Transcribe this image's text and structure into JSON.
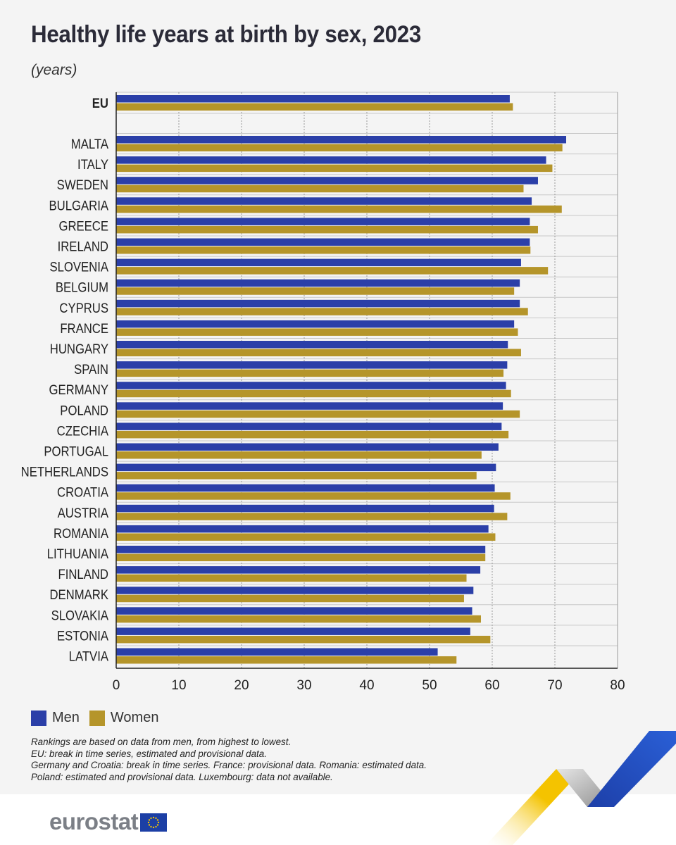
{
  "header": {
    "title": "Healthy life years at birth by sex, 2023",
    "subtitle": "(years)"
  },
  "chart_data": {
    "type": "bar",
    "orientation": "horizontal",
    "title": "Healthy life years at birth by sex, 2023",
    "unit": "(years)",
    "categories": [
      "EU",
      "MALTA",
      "ITALY",
      "SWEDEN",
      "BULGARIA",
      "GREECE",
      "IRELAND",
      "SLOVENIA",
      "BELGIUM",
      "CYPRUS",
      "FRANCE",
      "HUNGARY",
      "SPAIN",
      "GERMANY",
      "POLAND",
      "CZECHIA",
      "PORTUGAL",
      "NETHERLANDS",
      "CROATIA",
      "AUSTRIA",
      "ROMANIA",
      "LITHUANIA",
      "FINLAND",
      "DENMARK",
      "SLOVAKIA",
      "ESTONIA",
      "LATVIA"
    ],
    "series": [
      {
        "name": "Men",
        "color": "#2b3fa8",
        "values": [
          62.8,
          71.8,
          68.6,
          67.3,
          66.3,
          66.0,
          66.0,
          64.6,
          64.4,
          64.4,
          63.5,
          62.5,
          62.4,
          62.2,
          61.7,
          61.5,
          61.0,
          60.6,
          60.4,
          60.3,
          59.4,
          58.9,
          58.1,
          57.0,
          56.8,
          56.5,
          51.3
        ]
      },
      {
        "name": "Women",
        "color": "#b5952a",
        "values": [
          63.3,
          71.2,
          69.6,
          65.0,
          71.1,
          67.3,
          66.1,
          68.9,
          63.5,
          65.7,
          64.1,
          64.6,
          61.8,
          63.0,
          64.4,
          62.6,
          58.3,
          57.5,
          62.9,
          62.4,
          60.5,
          58.9,
          55.9,
          55.5,
          58.2,
          59.7,
          54.3
        ]
      }
    ],
    "xlim": [
      0,
      80
    ],
    "xticks": [
      "0",
      "10",
      "20",
      "30",
      "40",
      "50",
      "60",
      "70",
      "80"
    ],
    "grid": true,
    "legend_position": "bottom-left"
  },
  "legend": {
    "men": "Men",
    "women": "Women"
  },
  "notes": [
    "Rankings are based on data from men, from highest to lowest.",
    "EU: break in time series, estimated and provisional data.",
    "Germany and Croatia: break in time series. France: provisional data. Romania: estimated data.",
    "Poland: estimated and provisional data. Luxembourg: data not available."
  ],
  "footer": {
    "logo_text": "eurostat"
  },
  "colors": {
    "men": "#2b3fa8",
    "women": "#b5952a",
    "accent_blue": "#2246b4",
    "accent_yellow": "#f4c300"
  }
}
